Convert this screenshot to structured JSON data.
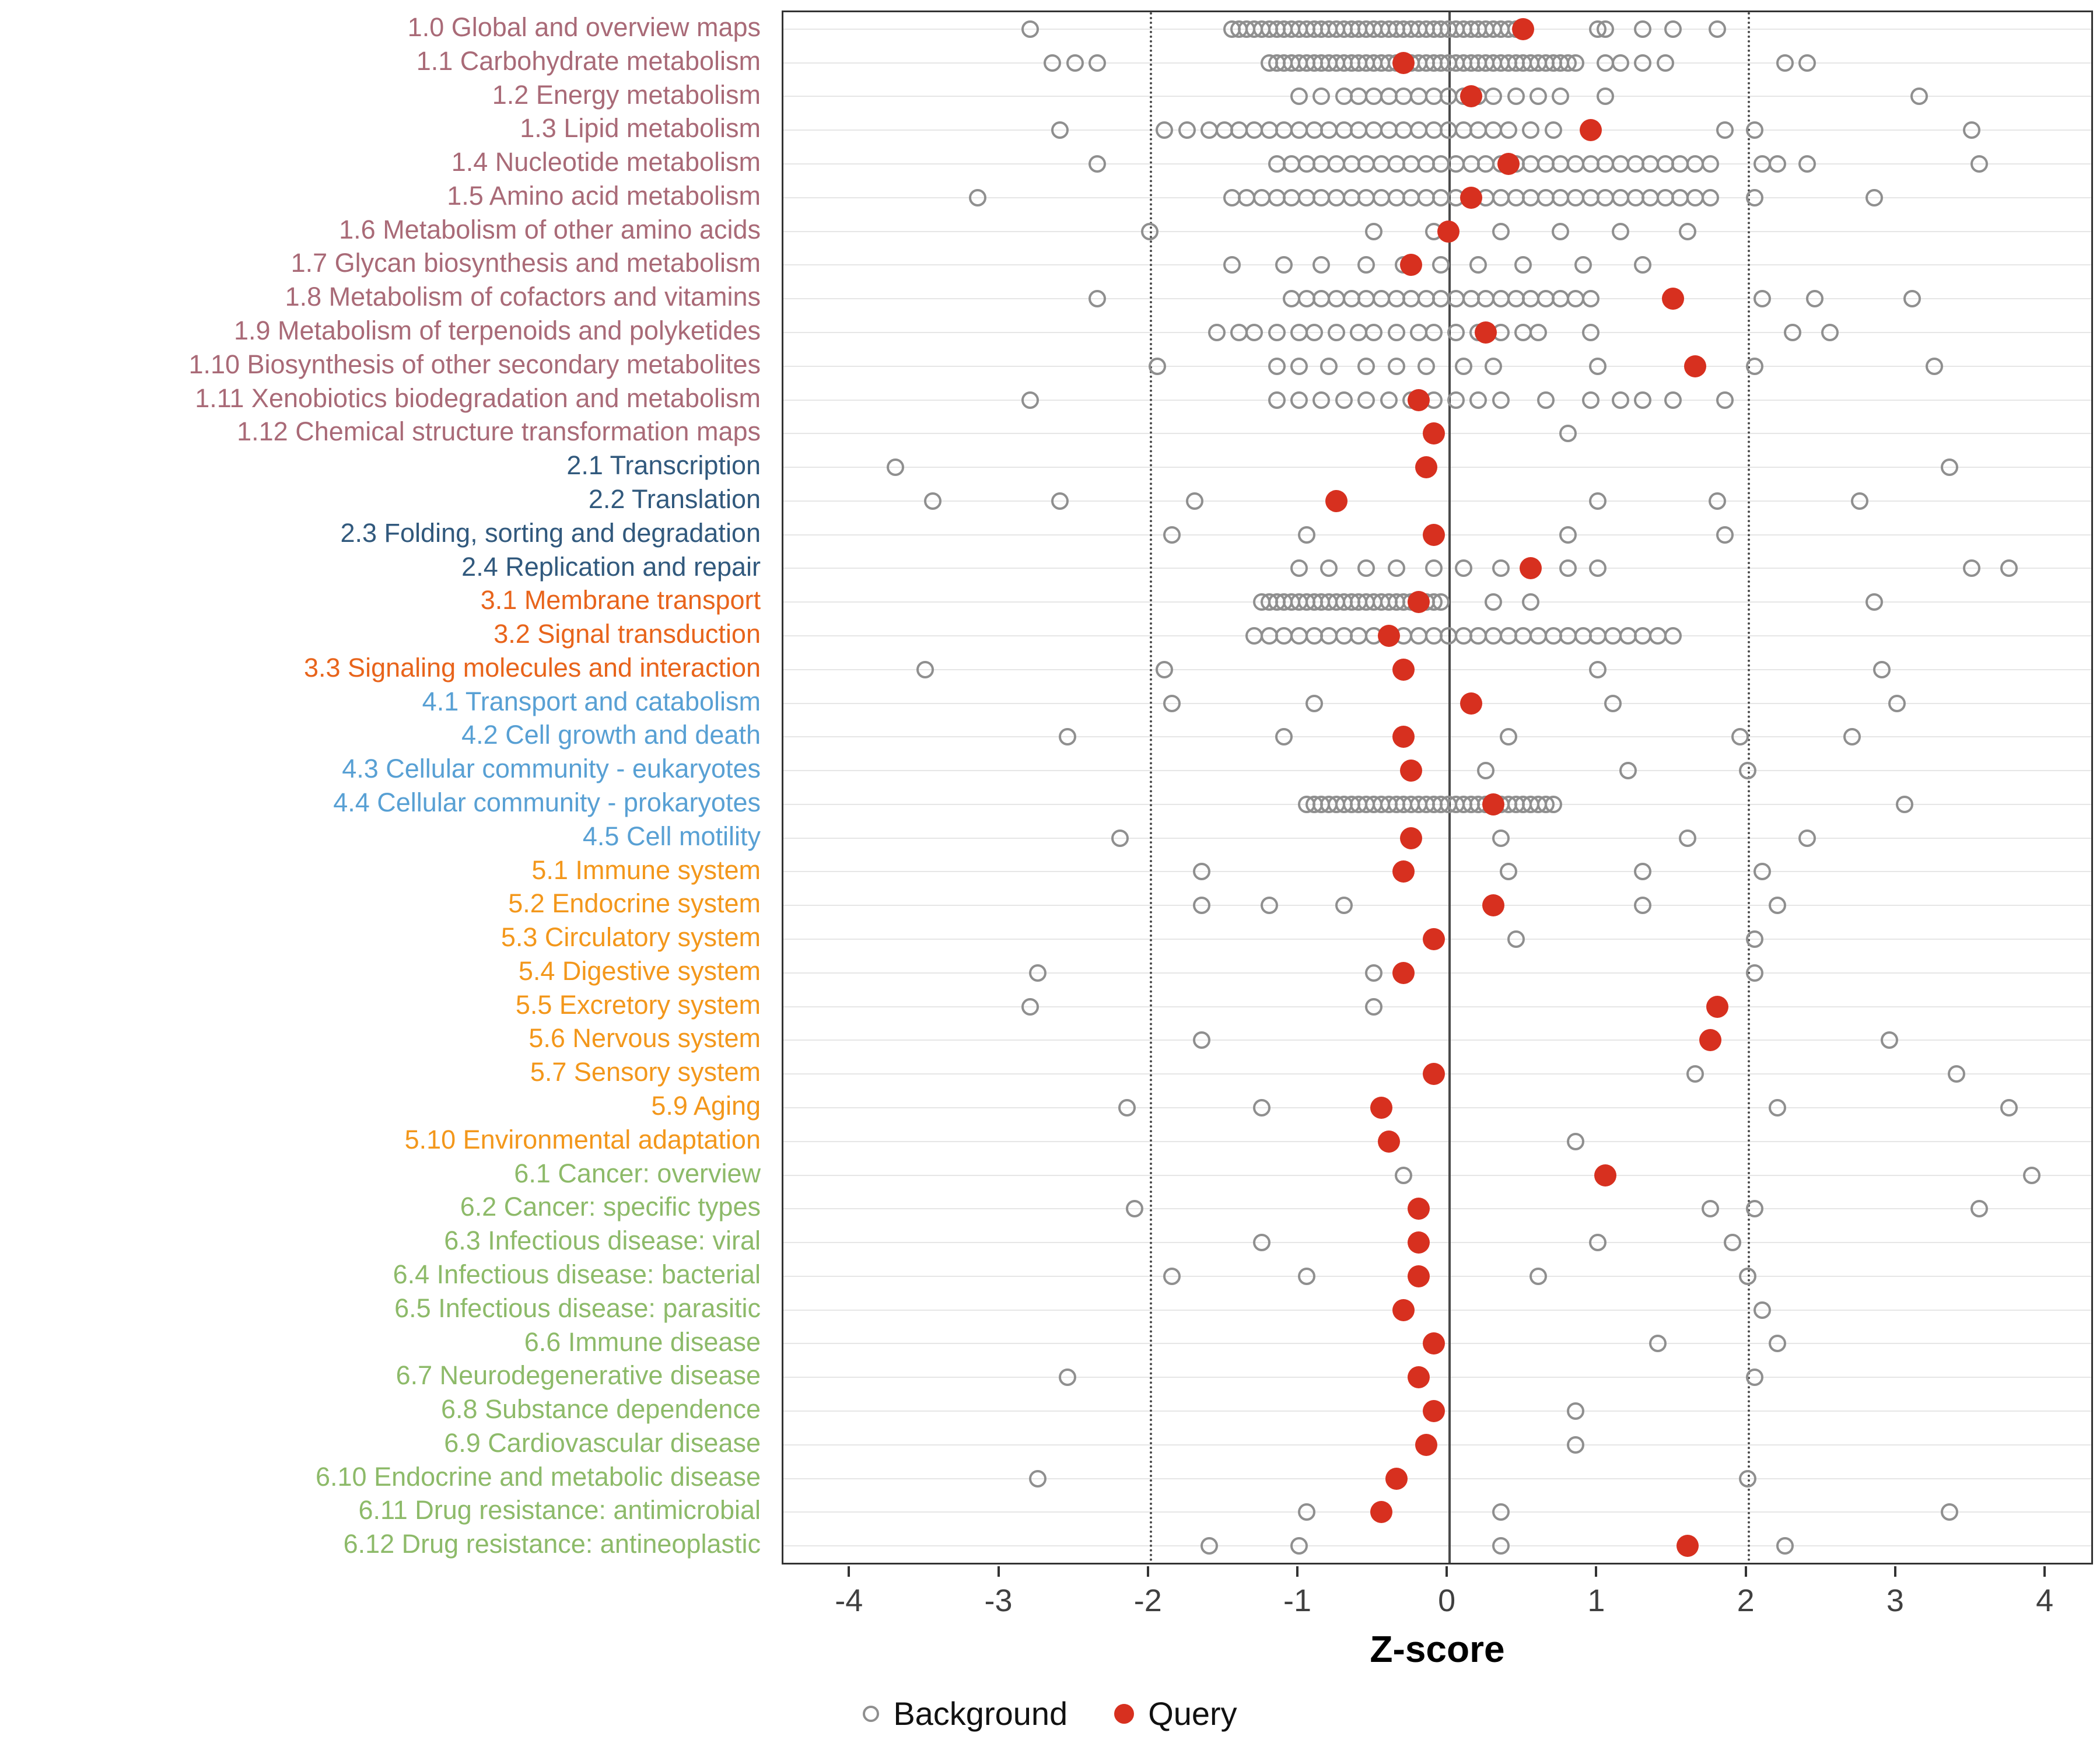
{
  "chart_data": {
    "type": "scatter",
    "title": "",
    "xlabel": "Z-score",
    "xlim": [
      -4.45,
      4.3
    ],
    "xticks": [
      -4,
      -3,
      -2,
      -1,
      0,
      1,
      2,
      3,
      4
    ],
    "vline_solid": 0,
    "vlines_dotted": [
      -2,
      2
    ],
    "grid": "horizontal-major",
    "legend_position": "bottom-center",
    "legend": [
      {
        "label": "Background",
        "marker": "open-circle",
        "color": "#8f8f8f"
      },
      {
        "label": "Query",
        "marker": "filled-circle",
        "color": "#d7301f"
      }
    ],
    "colors": {
      "query": "#d7301f",
      "background_stroke": "#8f8f8f",
      "gridline": "#e6e6e6",
      "refline": "#4a4a4a",
      "axis_text": "#404040"
    },
    "group_colors": {
      "1": "#a96a77",
      "2": "#31597d",
      "3": "#e8641b",
      "4": "#58a0d4",
      "5": "#f3971b",
      "6": "#8dba69"
    },
    "rows": [
      {
        "label": "1.0 Global and overview maps",
        "group": "1",
        "query": 0.5,
        "background": [
          -2.8,
          -1.45,
          -1.4,
          -1.35,
          -1.3,
          -1.25,
          -1.2,
          -1.15,
          -1.1,
          -1.05,
          -1,
          -0.95,
          -0.9,
          -0.85,
          -0.8,
          -0.75,
          -0.7,
          -0.65,
          -0.6,
          -0.55,
          -0.5,
          -0.45,
          -0.4,
          -0.35,
          -0.3,
          -0.25,
          -0.2,
          -0.15,
          -0.1,
          -0.05,
          0,
          0.05,
          0.1,
          0.15,
          0.2,
          0.25,
          0.3,
          0.35,
          0.4,
          0.45,
          1,
          1.05,
          1.3,
          1.5,
          1.8
        ]
      },
      {
        "label": "1.1 Carbohydrate metabolism",
        "group": "1",
        "query": -0.3,
        "background": [
          -2.65,
          -2.5,
          -2.35,
          -1.2,
          -1.15,
          -1.1,
          -1.05,
          -1,
          -0.95,
          -0.9,
          -0.85,
          -0.8,
          -0.75,
          -0.7,
          -0.65,
          -0.6,
          -0.55,
          -0.5,
          -0.45,
          -0.4,
          -0.35,
          -0.3,
          -0.25,
          -0.2,
          -0.15,
          -0.1,
          -0.05,
          0,
          0.05,
          0.1,
          0.15,
          0.2,
          0.25,
          0.3,
          0.35,
          0.4,
          0.45,
          0.5,
          0.55,
          0.6,
          0.65,
          0.7,
          0.75,
          0.8,
          0.85,
          1.05,
          1.15,
          1.3,
          1.45,
          2.25,
          2.4
        ]
      },
      {
        "label": "1.2 Energy metabolism",
        "group": "1",
        "query": 0.15,
        "background": [
          -1,
          -0.85,
          -0.7,
          -0.6,
          -0.5,
          -0.4,
          -0.3,
          -0.2,
          -0.1,
          0,
          0.1,
          0.2,
          0.3,
          0.45,
          0.6,
          0.75,
          1.05,
          3.15
        ]
      },
      {
        "label": "1.3 Lipid metabolism",
        "group": "1",
        "query": 0.95,
        "background": [
          -2.6,
          -1.9,
          -1.75,
          -1.6,
          -1.5,
          -1.4,
          -1.3,
          -1.2,
          -1.1,
          -1,
          -0.9,
          -0.8,
          -0.7,
          -0.6,
          -0.5,
          -0.4,
          -0.3,
          -0.2,
          -0.1,
          0,
          0.1,
          0.2,
          0.3,
          0.4,
          0.55,
          0.7,
          1.85,
          2.05,
          3.5
        ]
      },
      {
        "label": "1.4 Nucleotide metabolism",
        "group": "1",
        "query": 0.4,
        "background": [
          -2.35,
          -1.15,
          -1.05,
          -0.95,
          -0.85,
          -0.75,
          -0.65,
          -0.55,
          -0.45,
          -0.35,
          -0.25,
          -0.15,
          -0.05,
          0.05,
          0.15,
          0.25,
          0.35,
          0.45,
          0.55,
          0.65,
          0.75,
          0.85,
          0.95,
          1.05,
          1.15,
          1.25,
          1.35,
          1.45,
          1.55,
          1.65,
          1.75,
          2.1,
          2.2,
          2.4,
          3.55
        ]
      },
      {
        "label": "1.5 Amino acid metabolism",
        "group": "1",
        "query": 0.15,
        "background": [
          -3.15,
          -1.45,
          -1.35,
          -1.25,
          -1.15,
          -1.05,
          -0.95,
          -0.85,
          -0.75,
          -0.65,
          -0.55,
          -0.45,
          -0.35,
          -0.25,
          -0.15,
          -0.05,
          0.05,
          0.15,
          0.25,
          0.35,
          0.45,
          0.55,
          0.65,
          0.75,
          0.85,
          0.95,
          1.05,
          1.15,
          1.25,
          1.35,
          1.45,
          1.55,
          1.65,
          1.75,
          2.05,
          2.85
        ]
      },
      {
        "label": "1.6 Metabolism of other amino acids",
        "group": "1",
        "query": 0,
        "background": [
          -2,
          -0.5,
          -0.1,
          0.35,
          0.75,
          1.15,
          1.6
        ]
      },
      {
        "label": "1.7 Glycan biosynthesis and metabolism",
        "group": "1",
        "query": -0.25,
        "background": [
          -1.45,
          -1.1,
          -0.85,
          -0.55,
          -0.3,
          -0.05,
          0.2,
          0.5,
          0.9,
          1.3
        ]
      },
      {
        "label": "1.8 Metabolism of cofactors and vitamins",
        "group": "1",
        "query": 1.5,
        "background": [
          -2.35,
          -1.05,
          -0.95,
          -0.85,
          -0.75,
          -0.65,
          -0.55,
          -0.45,
          -0.35,
          -0.25,
          -0.15,
          -0.05,
          0.05,
          0.15,
          0.25,
          0.35,
          0.45,
          0.55,
          0.65,
          0.75,
          0.85,
          0.95,
          2.1,
          2.45,
          3.1
        ]
      },
      {
        "label": "1.9 Metabolism of terpenoids and polyketides",
        "group": "1",
        "query": 0.25,
        "background": [
          -1.55,
          -1.4,
          -1.3,
          -1.15,
          -1,
          -0.9,
          -0.75,
          -0.6,
          -0.5,
          -0.35,
          -0.2,
          -0.1,
          0.05,
          0.2,
          0.35,
          0.5,
          0.6,
          0.95,
          2.3,
          2.55
        ]
      },
      {
        "label": "1.10 Biosynthesis of other secondary metabolites",
        "group": "1",
        "query": 1.65,
        "background": [
          -1.95,
          -1.15,
          -1,
          -0.8,
          -0.55,
          -0.35,
          -0.15,
          0.1,
          0.3,
          1,
          2.05,
          3.25
        ]
      },
      {
        "label": "1.11 Xenobiotics biodegradation and metabolism",
        "group": "1",
        "query": -0.2,
        "background": [
          -2.8,
          -1.15,
          -1,
          -0.85,
          -0.7,
          -0.55,
          -0.4,
          -0.25,
          -0.1,
          0.05,
          0.2,
          0.35,
          0.65,
          0.95,
          1.15,
          1.3,
          1.5,
          1.85
        ]
      },
      {
        "label": "1.12 Chemical structure transformation maps",
        "group": "1",
        "query": -0.1,
        "background": [
          0.8
        ]
      },
      {
        "label": "2.1 Transcription",
        "group": "2",
        "query": -0.15,
        "background": [
          -3.7,
          3.35
        ]
      },
      {
        "label": "2.2 Translation",
        "group": "2",
        "query": -0.75,
        "background": [
          -3.45,
          -2.6,
          -1.7,
          1,
          1.8,
          2.75
        ]
      },
      {
        "label": "2.3 Folding, sorting and degradation",
        "group": "2",
        "query": -0.1,
        "background": [
          -1.85,
          -0.95,
          0.8,
          1.85
        ]
      },
      {
        "label": "2.4 Replication and repair",
        "group": "2",
        "query": 0.55,
        "background": [
          -1,
          -0.8,
          -0.55,
          -0.35,
          -0.1,
          0.1,
          0.35,
          0.55,
          0.8,
          1,
          3.5,
          3.75
        ]
      },
      {
        "label": "3.1 Membrane transport",
        "group": "3",
        "query": -0.2,
        "background": [
          -1.25,
          -1.2,
          -1.15,
          -1.1,
          -1.05,
          -1,
          -0.95,
          -0.9,
          -0.85,
          -0.8,
          -0.75,
          -0.7,
          -0.65,
          -0.6,
          -0.55,
          -0.5,
          -0.45,
          -0.4,
          -0.35,
          -0.3,
          -0.25,
          -0.2,
          -0.15,
          -0.1,
          -0.05,
          0.3,
          0.55,
          2.85
        ]
      },
      {
        "label": "3.2 Signal transduction",
        "group": "3",
        "query": -0.4,
        "background": [
          -1.3,
          -1.2,
          -1.1,
          -1,
          -0.9,
          -0.8,
          -0.7,
          -0.6,
          -0.5,
          -0.4,
          -0.3,
          -0.2,
          -0.1,
          0,
          0.1,
          0.2,
          0.3,
          0.4,
          0.5,
          0.6,
          0.7,
          0.8,
          0.9,
          1,
          1.1,
          1.2,
          1.3,
          1.4,
          1.5
        ]
      },
      {
        "label": "3.3 Signaling molecules and interaction",
        "group": "3",
        "query": -0.3,
        "background": [
          -3.5,
          -1.9,
          1,
          2.9
        ]
      },
      {
        "label": "4.1 Transport and catabolism",
        "group": "4",
        "query": 0.15,
        "background": [
          -1.85,
          -0.9,
          1.1,
          3
        ]
      },
      {
        "label": "4.2 Cell growth and death",
        "group": "4",
        "query": -0.3,
        "background": [
          -2.55,
          -1.1,
          0.4,
          1.95,
          2.7
        ]
      },
      {
        "label": "4.3 Cellular community - eukaryotes",
        "group": "4",
        "query": -0.25,
        "background": [
          0.25,
          1.2,
          2
        ]
      },
      {
        "label": "4.4 Cellular community - prokaryotes",
        "group": "4",
        "query": 0.3,
        "background": [
          -0.95,
          -0.9,
          -0.85,
          -0.8,
          -0.75,
          -0.7,
          -0.65,
          -0.6,
          -0.55,
          -0.5,
          -0.45,
          -0.4,
          -0.35,
          -0.3,
          -0.25,
          -0.2,
          -0.15,
          -0.1,
          -0.05,
          0,
          0.05,
          0.1,
          0.15,
          0.2,
          0.25,
          0.3,
          0.35,
          0.4,
          0.45,
          0.5,
          0.55,
          0.6,
          0.65,
          0.7,
          3.05
        ]
      },
      {
        "label": "4.5 Cell motility",
        "group": "4",
        "query": -0.25,
        "background": [
          -2.2,
          0.35,
          1.6,
          2.4
        ]
      },
      {
        "label": "5.1 Immune system",
        "group": "5",
        "query": -0.3,
        "background": [
          -1.65,
          0.4,
          1.3,
          2.1
        ]
      },
      {
        "label": "5.2 Endocrine system",
        "group": "5",
        "query": 0.3,
        "background": [
          -1.65,
          -1.2,
          -0.7,
          1.3,
          2.2
        ]
      },
      {
        "label": "5.3 Circulatory system",
        "group": "5",
        "query": -0.1,
        "background": [
          0.45,
          2.05
        ]
      },
      {
        "label": "5.4 Digestive system",
        "group": "5",
        "query": -0.3,
        "background": [
          -2.75,
          -0.5,
          2.05
        ]
      },
      {
        "label": "5.5 Excretory system",
        "group": "5",
        "query": 1.8,
        "background": [
          -2.8,
          -0.5
        ]
      },
      {
        "label": "5.6 Nervous system",
        "group": "5",
        "query": 1.75,
        "background": [
          -1.65,
          2.95
        ]
      },
      {
        "label": "5.7 Sensory system",
        "group": "5",
        "query": -0.1,
        "background": [
          1.65,
          3.4
        ]
      },
      {
        "label": "5.9 Aging",
        "group": "5",
        "query": -0.45,
        "background": [
          -2.15,
          -1.25,
          2.2,
          3.75
        ]
      },
      {
        "label": "5.10 Environmental adaptation",
        "group": "5",
        "query": -0.4,
        "background": [
          0.85
        ]
      },
      {
        "label": "6.1 Cancer: overview",
        "group": "6",
        "query": 1.05,
        "background": [
          -0.3,
          3.9
        ]
      },
      {
        "label": "6.2 Cancer: specific types",
        "group": "6",
        "query": -0.2,
        "background": [
          -2.1,
          1.75,
          2.05,
          3.55
        ]
      },
      {
        "label": "6.3 Infectious disease: viral",
        "group": "6",
        "query": -0.2,
        "background": [
          -1.25,
          1,
          1.9
        ]
      },
      {
        "label": "6.4 Infectious disease: bacterial",
        "group": "6",
        "query": -0.2,
        "background": [
          -1.85,
          -0.95,
          0.6,
          2
        ]
      },
      {
        "label": "6.5 Infectious disease: parasitic",
        "group": "6",
        "query": -0.3,
        "background": [
          2.1
        ]
      },
      {
        "label": "6.6 Immune disease",
        "group": "6",
        "query": -0.1,
        "background": [
          1.4,
          2.2
        ]
      },
      {
        "label": "6.7 Neurodegenerative disease",
        "group": "6",
        "query": -0.2,
        "background": [
          -2.55,
          2.05
        ]
      },
      {
        "label": "6.8 Substance dependence",
        "group": "6",
        "query": -0.1,
        "background": [
          0.85
        ]
      },
      {
        "label": "6.9 Cardiovascular disease",
        "group": "6",
        "query": -0.15,
        "background": [
          0.85
        ]
      },
      {
        "label": "6.10 Endocrine and metabolic disease",
        "group": "6",
        "query": -0.35,
        "background": [
          -2.75,
          2
        ]
      },
      {
        "label": "6.11 Drug resistance: antimicrobial",
        "group": "6",
        "query": -0.45,
        "background": [
          -0.95,
          0.35,
          3.35
        ]
      },
      {
        "label": "6.12 Drug resistance: antineoplastic",
        "group": "6",
        "query": 1.6,
        "background": [
          -1.6,
          -1,
          0.35,
          2.25
        ]
      }
    ]
  }
}
